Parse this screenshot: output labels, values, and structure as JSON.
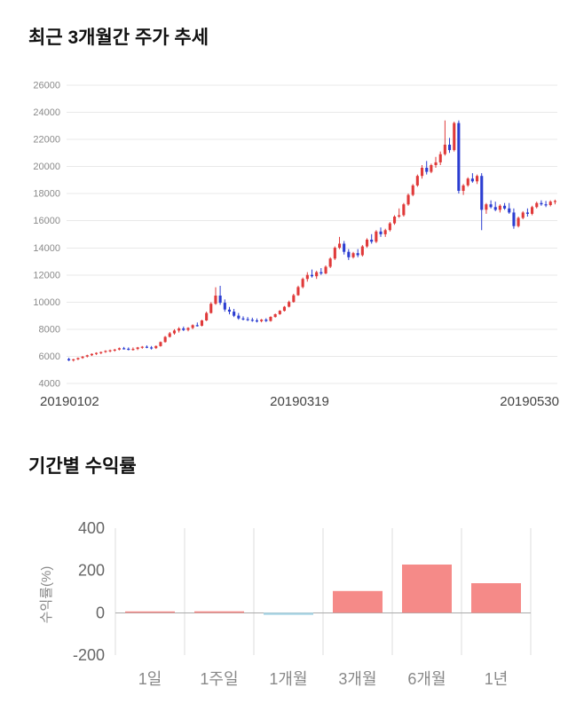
{
  "page": {
    "background": "#ffffff"
  },
  "sections": {
    "price_chart": {
      "title": "최근 3개월간 주가 추세"
    },
    "returns_chart": {
      "title": "기간별 수익률"
    }
  },
  "chart_data": [
    {
      "type": "candlestick",
      "title": "최근 3개월간 주가 추세",
      "ylim": [
        4000,
        26000
      ],
      "yticks": [
        4000,
        6000,
        8000,
        10000,
        12000,
        14000,
        16000,
        18000,
        20000,
        22000,
        24000,
        26000
      ],
      "x_axis_labels": [
        "20190102",
        "20190319",
        "20190530"
      ],
      "up_color": "#e03a3a",
      "down_color": "#2b3dd1",
      "grid_color": "#e9e9e9",
      "axis_text_color": "#8a8a8a",
      "x_label_color": "#444444",
      "candles": [
        [
          5800,
          5900,
          5650,
          5700
        ],
        [
          5700,
          5820,
          5620,
          5780
        ],
        [
          5780,
          5920,
          5720,
          5880
        ],
        [
          5880,
          6020,
          5820,
          5980
        ],
        [
          5980,
          6120,
          5920,
          6080
        ],
        [
          6080,
          6220,
          6020,
          6180
        ],
        [
          6180,
          6300,
          6100,
          6250
        ],
        [
          6250,
          6360,
          6160,
          6320
        ],
        [
          6320,
          6450,
          6260,
          6400
        ],
        [
          6400,
          6500,
          6300,
          6450
        ],
        [
          6450,
          6550,
          6350,
          6500
        ],
        [
          6500,
          6650,
          6440,
          6600
        ],
        [
          6600,
          6700,
          6500,
          6560
        ],
        [
          6560,
          6660,
          6440,
          6520
        ],
        [
          6520,
          6660,
          6420,
          6550
        ],
        [
          6550,
          6700,
          6460,
          6660
        ],
        [
          6660,
          6760,
          6560,
          6710
        ],
        [
          6710,
          6810,
          6600,
          6660
        ],
        [
          6660,
          6760,
          6500,
          6600
        ],
        [
          6600,
          6800,
          6550,
          6760
        ],
        [
          6760,
          7100,
          6710,
          7060
        ],
        [
          7060,
          7500,
          7010,
          7440
        ],
        [
          7440,
          7800,
          7390,
          7700
        ],
        [
          7700,
          8000,
          7600,
          7900
        ],
        [
          7900,
          8160,
          7760,
          8060
        ],
        [
          8060,
          8200,
          7860,
          7950
        ],
        [
          7950,
          8150,
          7850,
          8100
        ],
        [
          8100,
          8360,
          8000,
          8300
        ],
        [
          8300,
          8500,
          8200,
          8260
        ],
        [
          8260,
          8700,
          8210,
          8650
        ],
        [
          8650,
          9300,
          8600,
          9200
        ],
        [
          9200,
          10000,
          9150,
          9880
        ],
        [
          9880,
          11100,
          9800,
          10480
        ],
        [
          10480,
          11200,
          9800,
          9950
        ],
        [
          9950,
          10200,
          9300,
          9450
        ],
        [
          9450,
          9650,
          9100,
          9300
        ],
        [
          9300,
          9500,
          8900,
          9000
        ],
        [
          9000,
          9200,
          8700,
          8800
        ],
        [
          8800,
          8950,
          8650,
          8750
        ],
        [
          8750,
          8900,
          8600,
          8700
        ],
        [
          8700,
          8850,
          8550,
          8650
        ],
        [
          8650,
          8800,
          8500,
          8600
        ],
        [
          8600,
          8760,
          8510,
          8710
        ],
        [
          8710,
          8810,
          8530,
          8610
        ],
        [
          8610,
          8960,
          8560,
          8910
        ],
        [
          8910,
          9160,
          8860,
          9110
        ],
        [
          9110,
          9410,
          9060,
          9360
        ],
        [
          9360,
          9710,
          9310,
          9660
        ],
        [
          9660,
          10110,
          9610,
          10010
        ],
        [
          10010,
          10610,
          9960,
          10510
        ],
        [
          10510,
          11210,
          10460,
          11110
        ],
        [
          11110,
          11810,
          11010,
          11710
        ],
        [
          11710,
          12210,
          11510,
          12010
        ],
        [
          12010,
          12410,
          11810,
          11910
        ],
        [
          11910,
          12310,
          11710,
          12210
        ],
        [
          12210,
          12510,
          12010,
          12110
        ],
        [
          12110,
          12710,
          12060,
          12610
        ],
        [
          12610,
          13310,
          12510,
          13210
        ],
        [
          13210,
          14110,
          13110,
          14010
        ],
        [
          14010,
          14810,
          13910,
          14310
        ],
        [
          14310,
          14510,
          13510,
          13710
        ],
        [
          13710,
          13910,
          13110,
          13310
        ],
        [
          13310,
          13710,
          13210,
          13610
        ],
        [
          13610,
          13910,
          13310,
          13460
        ],
        [
          13460,
          14210,
          13360,
          14110
        ],
        [
          14110,
          14710,
          14010,
          14610
        ],
        [
          14610,
          15010,
          14310,
          14460
        ],
        [
          14460,
          15310,
          14360,
          15210
        ],
        [
          15210,
          15510,
          14810,
          15010
        ],
        [
          15010,
          15410,
          14810,
          15310
        ],
        [
          15310,
          15910,
          15210,
          15810
        ],
        [
          15810,
          16410,
          15710,
          16310
        ],
        [
          16310,
          16910,
          16210,
          16410
        ],
        [
          16410,
          17310,
          16310,
          17210
        ],
        [
          17210,
          18010,
          17110,
          17910
        ],
        [
          17910,
          18710,
          17810,
          18610
        ],
        [
          18610,
          19410,
          18510,
          19310
        ],
        [
          19310,
          20110,
          19110,
          19910
        ],
        [
          19910,
          20410,
          19410,
          19610
        ],
        [
          19610,
          20210,
          19510,
          20110
        ],
        [
          20110,
          20710,
          19910,
          20310
        ],
        [
          20310,
          21110,
          20110,
          20910
        ],
        [
          20910,
          23400,
          20810,
          21610
        ],
        [
          21610,
          22110,
          21010,
          21210
        ],
        [
          21210,
          23310,
          21110,
          23210
        ],
        [
          23210,
          23400,
          18010,
          18210
        ],
        [
          18210,
          18710,
          17910,
          18610
        ],
        [
          18610,
          19210,
          18510,
          19110
        ],
        [
          19110,
          19510,
          18810,
          18910
        ],
        [
          18910,
          19410,
          18710,
          19310
        ],
        [
          19310,
          19510,
          15310,
          16810
        ],
        [
          16810,
          17310,
          16510,
          17210
        ],
        [
          17210,
          17510,
          16910,
          17010
        ],
        [
          17010,
          17410,
          16710,
          16810
        ],
        [
          16810,
          17210,
          16610,
          17110
        ],
        [
          17110,
          17310,
          16810,
          16910
        ],
        [
          16910,
          17310,
          16510,
          16610
        ],
        [
          16610,
          16910,
          15410,
          15610
        ],
        [
          15610,
          16310,
          15510,
          16210
        ],
        [
          16210,
          16710,
          16110,
          16610
        ],
        [
          16610,
          16910,
          16310,
          16510
        ],
        [
          16510,
          17110,
          16410,
          17010
        ],
        [
          17010,
          17410,
          16910,
          17310
        ],
        [
          17310,
          17510,
          17110,
          17210
        ],
        [
          17210,
          17460,
          17010,
          17160
        ],
        [
          17160,
          17510,
          17060,
          17410
        ],
        [
          17410,
          17560,
          17210,
          17460
        ]
      ]
    },
    {
      "type": "bar",
      "title": "기간별 수익률",
      "categories": [
        "1일",
        "1주일",
        "1개월",
        "3개월",
        "6개월",
        "1년"
      ],
      "values": [
        4,
        7,
        -10,
        103,
        228,
        140
      ],
      "ylabel": "수익률(%)",
      "ylim": [
        -200,
        400
      ],
      "yticks": [
        400,
        200,
        0,
        -200
      ],
      "positive_color": "#f58a88",
      "negative_color": "#a8d5e5",
      "grid_color": "#dddddd",
      "zero_line_color": "#aaaaaa",
      "axis_text_color": "#666666",
      "category_text_color": "#888888",
      "legend": "none",
      "grid": "vertical-only"
    }
  ]
}
